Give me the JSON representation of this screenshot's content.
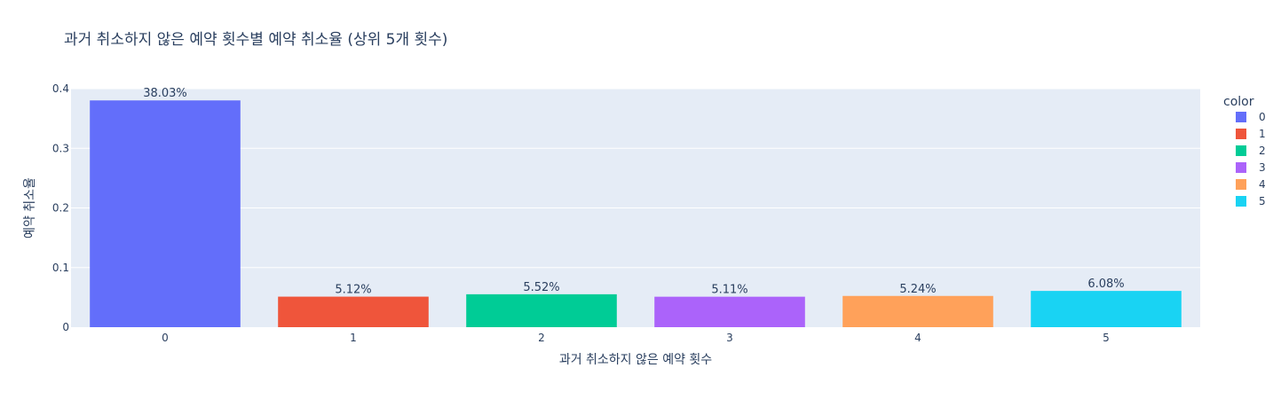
{
  "chart_data": {
    "type": "bar",
    "title": "과거 취소하지 않은 예약 횟수별 예약 취소율 (상위 5개 횟수)",
    "xlabel": "과거 취소하지 않은 예약 횟수",
    "ylabel": "예약 취소율",
    "categories": [
      "0",
      "1",
      "2",
      "3",
      "4",
      "5"
    ],
    "values": [
      0.3803,
      0.0512,
      0.0552,
      0.0511,
      0.0524,
      0.0608
    ],
    "value_labels": [
      "38.03%",
      "5.12%",
      "5.52%",
      "5.11%",
      "5.24%",
      "6.08%"
    ],
    "ylim": [
      0,
      0.4
    ],
    "yticks": [
      0,
      0.1,
      0.2,
      0.3,
      0.4
    ],
    "ytick_labels": [
      "0",
      "0.1",
      "0.2",
      "0.3",
      "0.4"
    ],
    "colors": [
      "#636efa",
      "#EF553B",
      "#00cc96",
      "#ab63fa",
      "#FFA15A",
      "#19d3f3"
    ],
    "grid": true,
    "plot_background": "#E5ECF6",
    "legend": {
      "title": "color",
      "position": "right",
      "entries": [
        "0",
        "1",
        "2",
        "3",
        "4",
        "5"
      ]
    }
  }
}
